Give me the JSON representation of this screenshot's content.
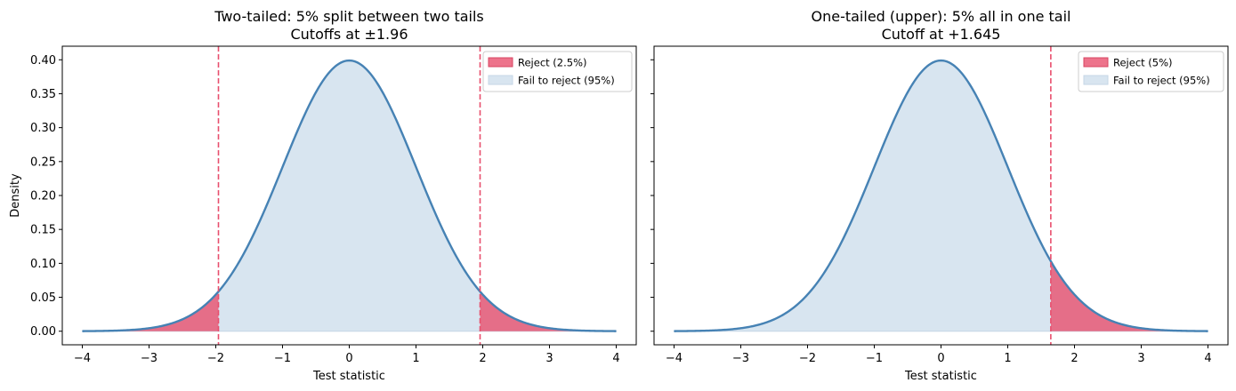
{
  "chart_data": [
    {
      "type": "area",
      "title_line1": "Two-tailed: 5% split between two tails",
      "title_line2": "Cutoffs at ±1.96",
      "xlabel": "Test statistic",
      "ylabel": "Density",
      "xlim": [
        -4.3,
        4.3
      ],
      "ylim": [
        -0.02,
        0.42
      ],
      "xticks": [
        -4,
        -3,
        -2,
        -1,
        0,
        1,
        2,
        3,
        4
      ],
      "xtick_labels": [
        "−4",
        "−3",
        "−2",
        "−1",
        "0",
        "1",
        "2",
        "3",
        "4"
      ],
      "yticks": [
        0.0,
        0.05,
        0.1,
        0.15,
        0.2,
        0.25,
        0.3,
        0.35,
        0.4
      ],
      "ytick_labels": [
        "0.00",
        "0.05",
        "0.10",
        "0.15",
        "0.20",
        "0.25",
        "0.30",
        "0.35",
        "0.40"
      ],
      "curve": {
        "x": [
          -4.0,
          -3.5,
          -3.0,
          -2.5,
          -2.0,
          -1.5,
          -1.0,
          -0.5,
          0.0,
          0.5,
          1.0,
          1.5,
          2.0,
          2.5,
          3.0,
          3.5,
          4.0
        ],
        "y": [
          0.0001,
          0.0009,
          0.0044,
          0.0175,
          0.054,
          0.1295,
          0.242,
          0.352,
          0.3989,
          0.352,
          0.242,
          0.1295,
          0.054,
          0.0175,
          0.0044,
          0.0009,
          0.0001
        ]
      },
      "cutoffs": [
        -1.96,
        1.96
      ],
      "reject_regions": [
        [
          -4.0,
          -1.96
        ],
        [
          1.96,
          4.0
        ]
      ],
      "legend_position": "upper right",
      "legend": [
        {
          "label": "Reject (2.5%)",
          "color": "#e8506e"
        },
        {
          "label": "Fail to reject (95%)",
          "color": "#d8e5f0"
        }
      ],
      "grid": false,
      "show_ytick_labels": true
    },
    {
      "type": "area",
      "title_line1": "One-tailed (upper): 5% all in one tail",
      "title_line2": "Cutoff at +1.645",
      "xlabel": "Test statistic",
      "ylabel": "",
      "xlim": [
        -4.3,
        4.3
      ],
      "ylim": [
        -0.02,
        0.42
      ],
      "xticks": [
        -4,
        -3,
        -2,
        -1,
        0,
        1,
        2,
        3,
        4
      ],
      "xtick_labels": [
        "−4",
        "−3",
        "−2",
        "−1",
        "0",
        "1",
        "2",
        "3",
        "4"
      ],
      "yticks": [
        0.0,
        0.05,
        0.1,
        0.15,
        0.2,
        0.25,
        0.3,
        0.35,
        0.4
      ],
      "ytick_labels": [],
      "curve": {
        "x": [
          -4.0,
          -3.5,
          -3.0,
          -2.5,
          -2.0,
          -1.5,
          -1.0,
          -0.5,
          0.0,
          0.5,
          1.0,
          1.5,
          2.0,
          2.5,
          3.0,
          3.5,
          4.0
        ],
        "y": [
          0.0001,
          0.0009,
          0.0044,
          0.0175,
          0.054,
          0.1295,
          0.242,
          0.352,
          0.3989,
          0.352,
          0.242,
          0.1295,
          0.054,
          0.0175,
          0.0044,
          0.0009,
          0.0001
        ]
      },
      "cutoffs": [
        1.645
      ],
      "reject_regions": [
        [
          1.645,
          4.0
        ]
      ],
      "legend_position": "upper right",
      "legend": [
        {
          "label": "Reject (5%)",
          "color": "#e8506e"
        },
        {
          "label": "Fail to reject (95%)",
          "color": "#d8e5f0"
        }
      ],
      "grid": false,
      "show_ytick_labels": false
    }
  ],
  "colors": {
    "curve": "#4682b4",
    "fail_fill": "#d8e5f0",
    "fail_edge": "#c6d6e6",
    "reject_fill": "#e8506e",
    "cutoff_line": "#e8506e"
  }
}
